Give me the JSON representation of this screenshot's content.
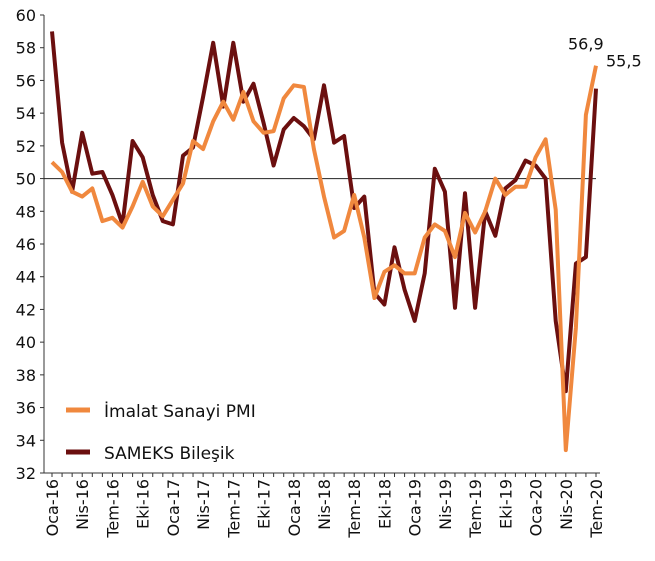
{
  "chart_data": {
    "type": "line",
    "categories": [
      "Oca-16",
      null,
      null,
      "Nis-16",
      null,
      null,
      "Tem-16",
      null,
      null,
      "Eki-16",
      null,
      null,
      "Oca-17",
      null,
      null,
      "Nis-17",
      null,
      null,
      "Tem-17",
      null,
      null,
      "Eki-17",
      null,
      null,
      "Oca-18",
      null,
      null,
      "Nis-18",
      null,
      null,
      "Tem-18",
      null,
      null,
      "Eki-18",
      null,
      null,
      "Oca-19",
      null,
      null,
      "Nis-19",
      null,
      null,
      "Tem-19",
      null,
      null,
      "Eki-19",
      null,
      null,
      "Oca-20",
      null,
      null,
      "Nis-20",
      null,
      null,
      "Tem-20"
    ],
    "series": [
      {
        "name": "İmalat Sanayi PMI",
        "color": "#f0883e",
        "values": [
          51.0,
          50.4,
          49.2,
          48.9,
          49.4,
          47.4,
          47.6,
          47.0,
          48.3,
          49.8,
          48.3,
          47.7,
          48.7,
          49.7,
          52.3,
          51.8,
          53.5,
          54.7,
          53.6,
          55.3,
          53.5,
          52.8,
          52.9,
          54.9,
          55.7,
          55.6,
          51.8,
          48.9,
          46.4,
          46.8,
          49.0,
          46.4,
          42.7,
          44.3,
          44.7,
          44.2,
          44.2,
          46.4,
          47.2,
          46.8,
          45.2,
          47.9,
          46.7,
          48.0,
          50.0,
          49.0,
          49.5,
          49.5,
          51.3,
          52.4,
          48.1,
          33.4,
          40.9,
          53.9,
          56.9
        ],
        "value_labels": [
          null,
          null,
          null,
          null,
          null,
          null,
          null,
          null,
          null,
          null,
          null,
          null,
          null,
          null,
          null,
          null,
          null,
          null,
          null,
          null,
          null,
          null,
          null,
          null,
          null,
          null,
          null,
          null,
          null,
          null,
          null,
          null,
          null,
          null,
          null,
          null,
          null,
          null,
          null,
          null,
          null,
          null,
          null,
          null,
          null,
          null,
          null,
          null,
          null,
          null,
          null,
          null,
          null,
          null,
          "56,9"
        ]
      },
      {
        "name": "SAMEKS Bileşik",
        "color": "#6b0f0f",
        "values": [
          59.0,
          52.2,
          49.2,
          52.8,
          50.3,
          50.4,
          49.0,
          47.2,
          52.3,
          51.3,
          49.0,
          47.4,
          47.2,
          51.4,
          51.9,
          55.0,
          58.3,
          54.4,
          58.3,
          54.7,
          55.8,
          53.4,
          50.8,
          53.0,
          53.7,
          53.2,
          52.4,
          55.7,
          52.2,
          52.6,
          48.2,
          48.9,
          43.0,
          42.3,
          45.8,
          43.2,
          41.3,
          44.2,
          50.6,
          49.2,
          42.1,
          49.1,
          42.1,
          48.0,
          46.5,
          49.4,
          49.9,
          51.1,
          50.8,
          50.0,
          41.3,
          37.0,
          44.8,
          45.2,
          55.5
        ],
        "value_labels": [
          null,
          null,
          null,
          null,
          null,
          null,
          null,
          null,
          null,
          null,
          null,
          null,
          null,
          null,
          null,
          null,
          null,
          null,
          null,
          null,
          null,
          null,
          null,
          null,
          null,
          null,
          null,
          null,
          null,
          null,
          null,
          null,
          null,
          null,
          null,
          null,
          null,
          null,
          null,
          null,
          null,
          null,
          null,
          null,
          null,
          null,
          null,
          null,
          null,
          null,
          null,
          null,
          null,
          null,
          "55,5"
        ]
      }
    ],
    "ylim": [
      32,
      60
    ],
    "yticks": [
      32,
      34,
      36,
      38,
      40,
      42,
      44,
      46,
      48,
      50,
      52,
      54,
      56,
      58,
      60
    ],
    "reference_line": 50,
    "legend": "lower left"
  }
}
